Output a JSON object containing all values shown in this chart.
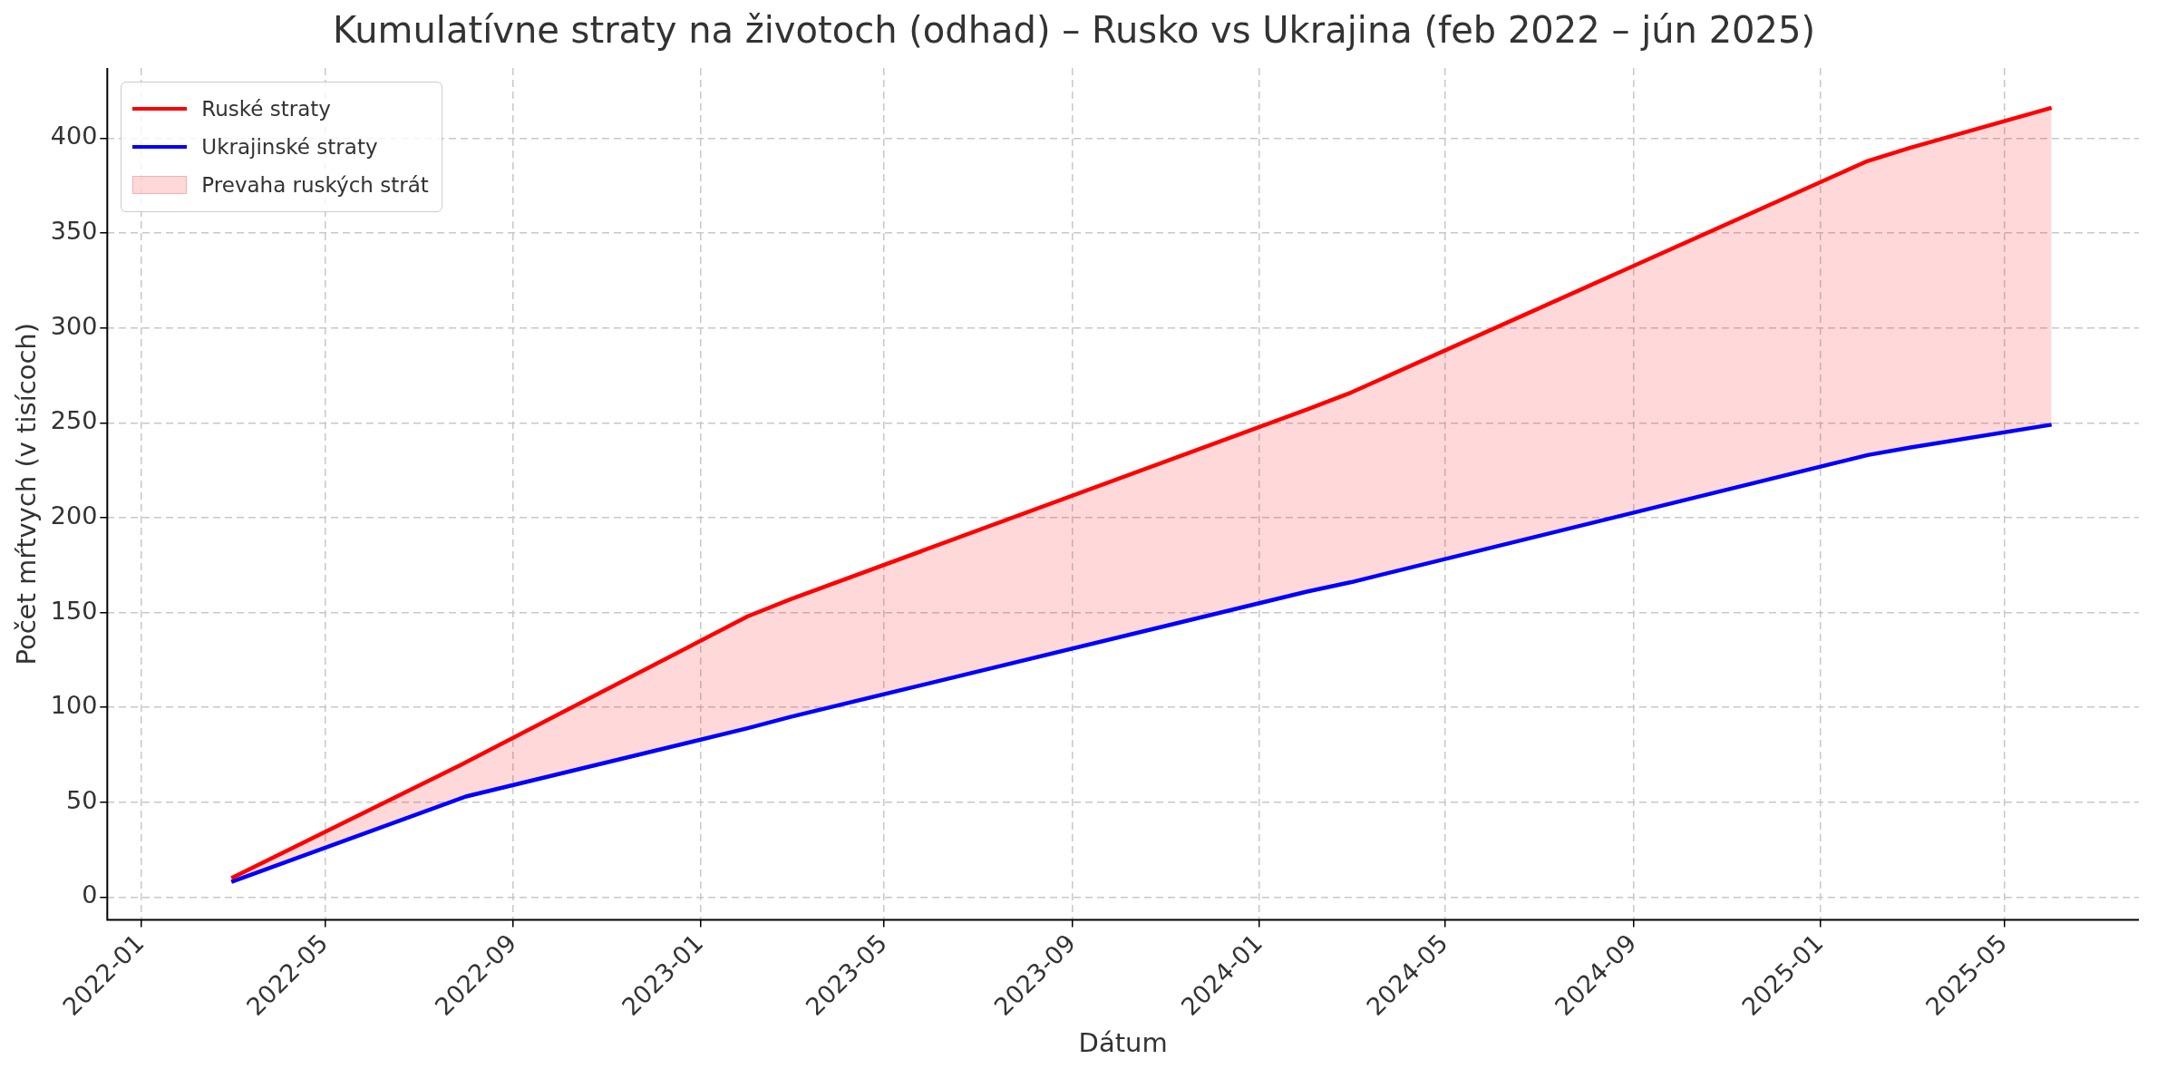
{
  "chart_data": {
    "type": "line",
    "title": "Kumulatívne straty na životoch (odhad) – Rusko vs Ukrajina (feb 2022 – jún 2025)",
    "xlabel": "Dátum",
    "ylabel": "Počet mŕtvych (v tisícoch)",
    "x": [
      "2022-03",
      "2022-08",
      "2023-02",
      "2023-03",
      "2024-02",
      "2024-03",
      "2025-02",
      "2025-03",
      "2025-06"
    ],
    "series": [
      {
        "name": "Ruské straty",
        "color": "#ff0000",
        "values": [
          10,
          71,
          148,
          157,
          257,
          266,
          388,
          395,
          416
        ],
        "lower": [
          8,
          53,
          89,
          95,
          161,
          166,
          233,
          237,
          249
        ],
        "upper": [
          10,
          71,
          148,
          157,
          257,
          266,
          388,
          395,
          416
        ]
      },
      {
        "name": "Ukrajinské straty",
        "color": "#0000ff",
        "values": [
          8,
          53,
          89,
          95,
          161,
          166,
          233,
          237,
          249
        ]
      }
    ],
    "annotations": [
      "Prevaha ruských strát"
    ],
    "xlim": [
      "2021-12-10",
      "2025-07-28"
    ],
    "xticks": [
      "2022-01",
      "2022-05",
      "2022-09",
      "2023-01",
      "2023-05",
      "2023-09",
      "2024-01",
      "2024-05",
      "2024-09",
      "2025-01",
      "2025-05"
    ],
    "ylim": [
      -12,
      437
    ],
    "yticks": [
      0,
      50,
      100,
      150,
      200,
      250,
      300,
      350,
      400
    ],
    "grid": true,
    "legend": "top left",
    "line_style": "solid",
    "marker": "none"
  }
}
